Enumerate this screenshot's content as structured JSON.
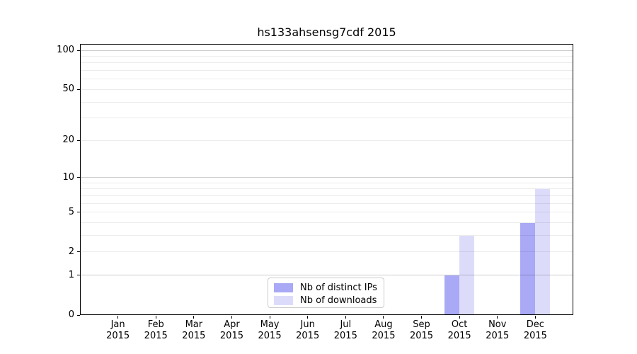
{
  "chart_data": {
    "type": "bar",
    "title": "hs133ahsensg7cdf 2015",
    "categories": [
      "Jan",
      "Feb",
      "Mar",
      "Apr",
      "May",
      "Jun",
      "Jul",
      "Aug",
      "Sep",
      "Oct",
      "Nov",
      "Dec"
    ],
    "category_year": "2015",
    "series": [
      {
        "name": "Nb of distinct IPs",
        "color": "#a9a9f6",
        "values": [
          0,
          0,
          0,
          0,
          0,
          0,
          0,
          0,
          0,
          1,
          0,
          4
        ]
      },
      {
        "name": "Nb of downloads",
        "color": "#dcdcfa",
        "values": [
          0,
          0,
          0,
          0,
          0,
          0,
          0,
          0,
          0,
          3,
          0,
          8
        ]
      }
    ],
    "xlabel": "",
    "ylabel": "",
    "yticks": [
      0,
      1,
      2,
      5,
      10,
      20,
      50,
      100
    ],
    "minor_gridlines": [
      2,
      3,
      4,
      5,
      6,
      7,
      8,
      9,
      20,
      30,
      40,
      50,
      60,
      70,
      80,
      90
    ],
    "major_gridlines": [
      1,
      10,
      100
    ],
    "scale": "log10(1+x)",
    "ylim": [
      0,
      112
    ],
    "grid": true,
    "legend_position": "lower center"
  }
}
